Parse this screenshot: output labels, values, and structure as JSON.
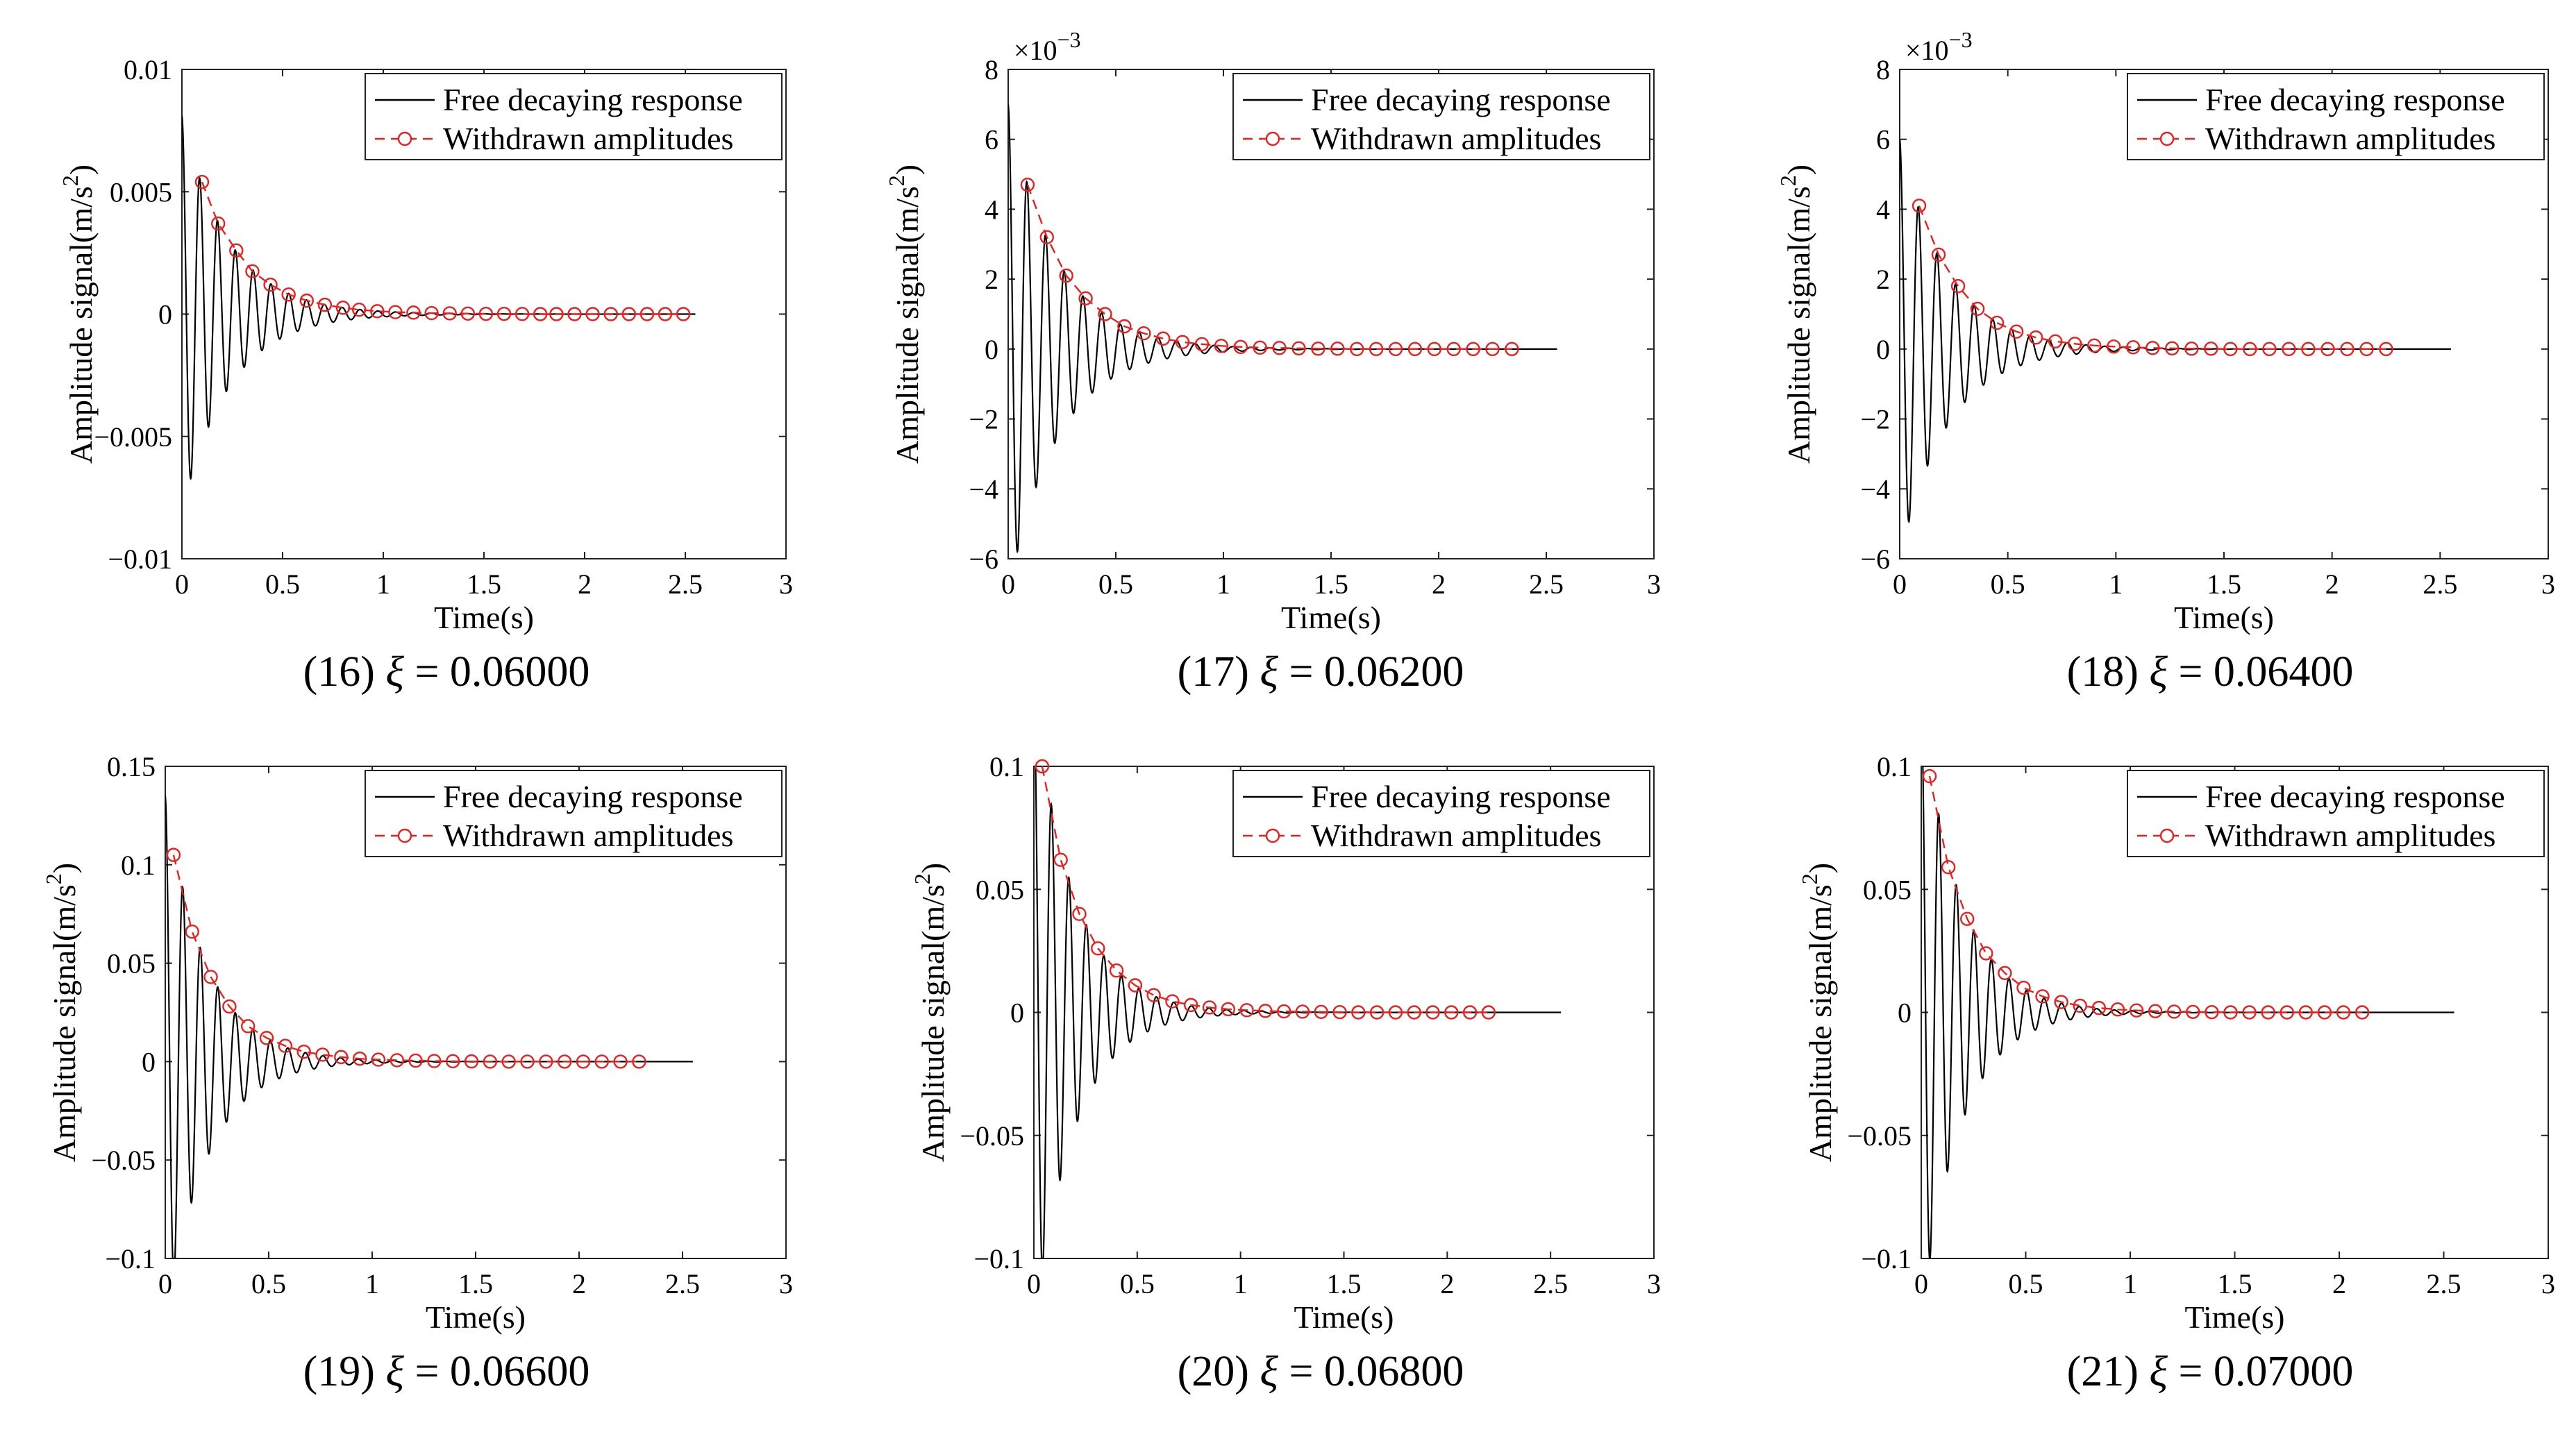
{
  "figure": {
    "panels_count": 6,
    "series_styles": {
      "response_color": "#000000",
      "amplitude_color": "#e8201f"
    }
  },
  "chart_data": [
    {
      "type": "line",
      "panel_id": "16",
      "caption": {
        "prefix": "(16) ",
        "symbol": "ξ",
        "value": " = 0.06000"
      },
      "xlabel": "Time(s)",
      "ylabel": "Amplitude signal(m/s",
      "ylabel_sup": "2",
      "ylabel_close": ")",
      "xlim": [
        0,
        3
      ],
      "ylim": [
        -0.01,
        0.01
      ],
      "xticks": [
        0,
        0.5,
        1,
        1.5,
        2,
        2.5,
        3
      ],
      "xtick_labels": [
        "0",
        "0.5",
        "1",
        "1.5",
        "2",
        "2.5",
        "3"
      ],
      "yticks": [
        -0.01,
        -0.005,
        0,
        0.005,
        0.01
      ],
      "ytick_labels": [
        "−0.01",
        "−0.005",
        "0",
        "0.005",
        "0.01"
      ],
      "exponent_label": "",
      "legend": [
        "Free decaying response",
        "Withdrawn amplitudes"
      ],
      "legend_position": "top-right",
      "response": {
        "A0": 0.0081,
        "freq_hz": 11.3,
        "decay_per_s": 4.26,
        "start_s": 0,
        "end_s": 2.55
      },
      "amplitudes": {
        "t": [
          0.1,
          0.18,
          0.27,
          0.35,
          0.44,
          0.53,
          0.62,
          0.71,
          0.8,
          0.88,
          0.97,
          1.06,
          1.15,
          1.24,
          1.33,
          1.42,
          1.51,
          1.6,
          1.69,
          1.78,
          1.86,
          1.95,
          2.04,
          2.13,
          2.22,
          2.31,
          2.4,
          2.49
        ],
        "a": [
          0.0054,
          0.0037,
          0.0026,
          0.00175,
          0.0012,
          0.0008,
          0.00055,
          0.00038,
          0.00026,
          0.00018,
          0.00012,
          8e-05,
          6e-05,
          4e-05,
          3e-05,
          2e-05,
          1e-05,
          1e-05,
          5e-06,
          0,
          0,
          0,
          0,
          0,
          0,
          0,
          0,
          0
        ]
      }
    },
    {
      "type": "line",
      "panel_id": "17",
      "caption": {
        "prefix": "(17) ",
        "symbol": "ξ",
        "value": " = 0.06200"
      },
      "xlabel": "Time(s)",
      "ylabel": "Amplitude signal(m/s",
      "ylabel_sup": "2",
      "ylabel_close": ")",
      "xlim": [
        0,
        3
      ],
      "ylim": [
        -6,
        8
      ],
      "xticks": [
        0,
        0.5,
        1,
        1.5,
        2,
        2.5,
        3
      ],
      "xtick_labels": [
        "0",
        "0.5",
        "1",
        "1.5",
        "2",
        "2.5",
        "3"
      ],
      "yticks": [
        -6,
        -4,
        -2,
        0,
        2,
        4,
        6,
        8
      ],
      "ytick_labels": [
        "−6",
        "−4",
        "−2",
        "0",
        "2",
        "4",
        "6",
        "8"
      ],
      "exponent_label": "×10",
      "exponent_power": "−3",
      "legend": [
        "Free decaying response",
        "Withdrawn amplitudes"
      ],
      "legend_position": "top-right",
      "response": {
        "A0": 7.0,
        "freq_hz": 11.5,
        "decay_per_s": 4.4,
        "start_s": 0,
        "end_s": 2.55
      },
      "amplitudes": {
        "t": [
          0.09,
          0.18,
          0.27,
          0.36,
          0.45,
          0.54,
          0.63,
          0.72,
          0.81,
          0.9,
          0.99,
          1.08,
          1.17,
          1.26,
          1.35,
          1.44,
          1.53,
          1.62,
          1.71,
          1.8,
          1.89,
          1.98,
          2.07,
          2.16,
          2.25,
          2.34
        ],
        "a": [
          4.7,
          3.2,
          2.1,
          1.45,
          1.0,
          0.65,
          0.45,
          0.3,
          0.2,
          0.14,
          0.09,
          0.06,
          0.04,
          0.03,
          0.02,
          0.01,
          0.01,
          0,
          0,
          0,
          0,
          0,
          0,
          0,
          0,
          0
        ]
      }
    },
    {
      "type": "line",
      "panel_id": "18",
      "caption": {
        "prefix": "(18) ",
        "symbol": "ξ",
        "value": " = 0.06400"
      },
      "xlabel": "Time(s)",
      "ylabel": "Amplitude signal(m/s",
      "ylabel_sup": "2",
      "ylabel_close": ")",
      "xlim": [
        0,
        3
      ],
      "ylim": [
        -6,
        8
      ],
      "xticks": [
        0,
        0.5,
        1,
        1.5,
        2,
        2.5,
        3
      ],
      "xtick_labels": [
        "0",
        "0.5",
        "1",
        "1.5",
        "2",
        "2.5",
        "3"
      ],
      "yticks": [
        -6,
        -4,
        -2,
        0,
        2,
        4,
        6,
        8
      ],
      "ytick_labels": [
        "−6",
        "−4",
        "−2",
        "0",
        "2",
        "4",
        "6",
        "8"
      ],
      "exponent_label": "×10",
      "exponent_power": "−3",
      "legend": [
        "Free decaying response",
        "Withdrawn amplitudes"
      ],
      "legend_position": "top-right",
      "response": {
        "A0": 6.0,
        "freq_hz": 11.6,
        "decay_per_s": 4.55,
        "start_s": 0,
        "end_s": 2.55
      },
      "amplitudes": {
        "t": [
          0.09,
          0.18,
          0.27,
          0.36,
          0.45,
          0.54,
          0.63,
          0.72,
          0.81,
          0.9,
          0.99,
          1.08,
          1.17,
          1.26,
          1.35,
          1.44,
          1.53,
          1.62,
          1.71,
          1.8,
          1.89,
          1.98,
          2.07,
          2.16,
          2.25
        ],
        "a": [
          4.1,
          2.7,
          1.8,
          1.15,
          0.75,
          0.5,
          0.33,
          0.22,
          0.15,
          0.1,
          0.07,
          0.05,
          0.03,
          0.02,
          0.01,
          0.01,
          0,
          0,
          0,
          0,
          0,
          0,
          0,
          0,
          0
        ]
      }
    },
    {
      "type": "line",
      "panel_id": "19",
      "caption": {
        "prefix": "(19) ",
        "symbol": "ξ",
        "value": " = 0.06600"
      },
      "xlabel": "Time(s)",
      "ylabel": "Amplitude signal(m/s",
      "ylabel_sup": "2",
      "ylabel_close": ")",
      "xlim": [
        0,
        3
      ],
      "ylim": [
        -0.1,
        0.15
      ],
      "xticks": [
        0,
        0.5,
        1,
        1.5,
        2,
        2.5,
        3
      ],
      "xtick_labels": [
        "0",
        "0.5",
        "1",
        "1.5",
        "2",
        "2.5",
        "3"
      ],
      "yticks": [
        -0.1,
        -0.05,
        0,
        0.05,
        0.1,
        0.15
      ],
      "ytick_labels": [
        "−0.1",
        "−0.05",
        "0",
        "0.05",
        "0.1",
        "0.15"
      ],
      "exponent_label": "",
      "legend": [
        "Free decaying response",
        "Withdrawn amplitudes"
      ],
      "legend_position": "top-right",
      "response": {
        "A0": 0.135,
        "freq_hz": 11.8,
        "decay_per_s": 5.0,
        "start_s": 0,
        "end_s": 2.55
      },
      "amplitudes": {
        "t": [
          0.04,
          0.13,
          0.22,
          0.31,
          0.4,
          0.49,
          0.58,
          0.67,
          0.76,
          0.85,
          0.94,
          1.03,
          1.12,
          1.21,
          1.3,
          1.39,
          1.48,
          1.57,
          1.66,
          1.75,
          1.84,
          1.93,
          2.02,
          2.11,
          2.2,
          2.29
        ],
        "a": [
          0.105,
          0.066,
          0.043,
          0.028,
          0.018,
          0.012,
          0.008,
          0.005,
          0.0035,
          0.0023,
          0.0015,
          0.001,
          0.0007,
          0.0005,
          0.0003,
          0.0002,
          0.0001,
          0,
          0,
          0,
          0,
          0,
          0,
          0,
          0,
          0
        ]
      }
    },
    {
      "type": "line",
      "panel_id": "20",
      "caption": {
        "prefix": "(20) ",
        "symbol": "ξ",
        "value": " = 0.06800"
      },
      "xlabel": "Time(s)",
      "ylabel": "Amplitude signal(m/s",
      "ylabel_sup": "2",
      "ylabel_close": ")",
      "xlim": [
        0,
        3
      ],
      "ylim": [
        -0.1,
        0.1
      ],
      "xticks": [
        0,
        0.5,
        1,
        1.5,
        2,
        2.5,
        3
      ],
      "xtick_labels": [
        "0",
        "0.5",
        "1",
        "1.5",
        "2",
        "2.5",
        "3"
      ],
      "yticks": [
        -0.1,
        -0.05,
        0,
        0.05,
        0.1
      ],
      "ytick_labels": [
        "−0.1",
        "−0.05",
        "0",
        "0.05",
        "0.1"
      ],
      "exponent_label": "",
      "legend": [
        "Free decaying response",
        "Withdrawn amplitudes"
      ],
      "legend_position": "top-right",
      "response": {
        "A0": 0.13,
        "freq_hz": 11.8,
        "decay_per_s": 5.1,
        "start_s": 0,
        "end_s": 2.55
      },
      "amplitudes": {
        "t": [
          0.04,
          0.13,
          0.22,
          0.31,
          0.4,
          0.49,
          0.58,
          0.67,
          0.76,
          0.85,
          0.94,
          1.03,
          1.12,
          1.21,
          1.3,
          1.39,
          1.48,
          1.57,
          1.66,
          1.75,
          1.84,
          1.93,
          2.02,
          2.11,
          2.2
        ],
        "a": [
          0.1,
          0.062,
          0.04,
          0.026,
          0.017,
          0.011,
          0.007,
          0.0045,
          0.003,
          0.002,
          0.0013,
          0.0009,
          0.0006,
          0.0004,
          0.0003,
          0.0002,
          0.0001,
          0,
          0,
          0,
          0,
          0,
          0,
          0,
          0
        ]
      }
    },
    {
      "type": "line",
      "panel_id": "21",
      "caption": {
        "prefix": "(21) ",
        "symbol": "ξ",
        "value": " = 0.07000"
      },
      "xlabel": "Time(s)",
      "ylabel": "Amplitude signal(m/s",
      "ylabel_sup": "2",
      "ylabel_close": ")",
      "xlim": [
        0,
        3
      ],
      "ylim": [
        -0.1,
        0.1
      ],
      "xticks": [
        0,
        0.5,
        1,
        1.5,
        2,
        2.5,
        3
      ],
      "xtick_labels": [
        "0",
        "0.5",
        "1",
        "1.5",
        "2",
        "2.5",
        "3"
      ],
      "yticks": [
        -0.1,
        -0.05,
        0,
        0.05,
        0.1
      ],
      "ytick_labels": [
        "−0.1",
        "−0.05",
        "0",
        "0.05",
        "0.1"
      ],
      "exponent_label": "",
      "legend": [
        "Free decaying response",
        "Withdrawn amplitudes"
      ],
      "legend_position": "top-right",
      "response": {
        "A0": 0.125,
        "freq_hz": 11.9,
        "decay_per_s": 5.25,
        "start_s": 0,
        "end_s": 2.55
      },
      "amplitudes": {
        "t": [
          0.04,
          0.13,
          0.22,
          0.31,
          0.4,
          0.49,
          0.58,
          0.67,
          0.76,
          0.85,
          0.94,
          1.03,
          1.12,
          1.21,
          1.3,
          1.39,
          1.48,
          1.57,
          1.66,
          1.75,
          1.84,
          1.93,
          2.02,
          2.11
        ],
        "a": [
          0.096,
          0.059,
          0.038,
          0.024,
          0.016,
          0.01,
          0.0065,
          0.0042,
          0.0027,
          0.0018,
          0.0012,
          0.0008,
          0.0005,
          0.0003,
          0.0002,
          0.0001,
          0,
          0,
          0,
          0,
          0,
          0,
          0,
          0
        ]
      }
    }
  ]
}
